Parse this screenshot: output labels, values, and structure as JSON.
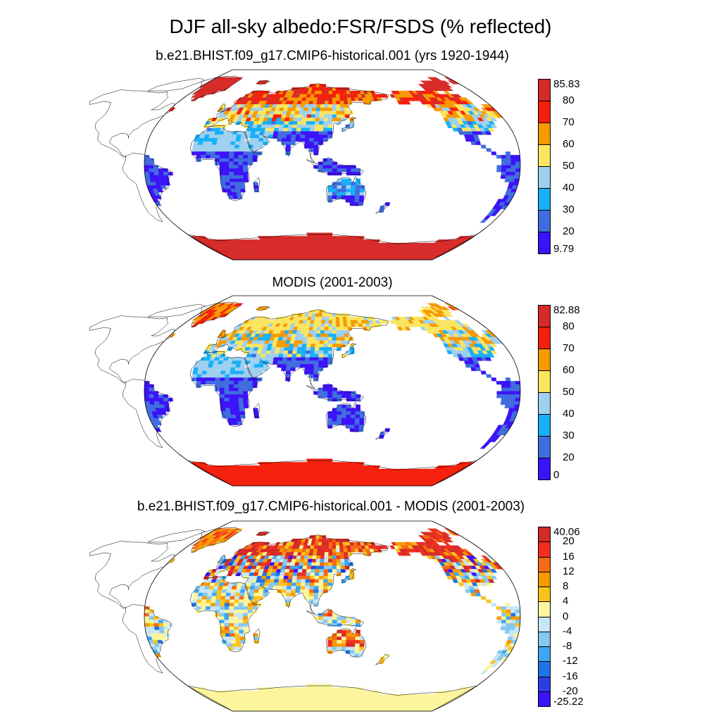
{
  "title": "DJF all-sky albedo:FSR/FSDS (% reflected)",
  "panels": [
    {
      "id": "model",
      "title": "b.e21.BHIST.f09_g17.CMIP6-historical.001 (yrs 1920-1944)",
      "colorbar": {
        "labels": [
          "85.83",
          "80",
          "70",
          "60",
          "50",
          "40",
          "30",
          "20",
          "9.79"
        ],
        "colors": [
          "#d62a28",
          "#f61f0c",
          "#f79a00",
          "#fbe55f",
          "#9ed0ef",
          "#18b0f8",
          "#3f6ce0",
          "#3c12f8"
        ]
      }
    },
    {
      "id": "obs",
      "title": "MODIS (2001-2003)",
      "colorbar": {
        "labels": [
          "82.88",
          "80",
          "70",
          "60",
          "50",
          "40",
          "30",
          "20",
          "0"
        ],
        "colors": [
          "#d62a28",
          "#f61f0c",
          "#f79a00",
          "#fbe55f",
          "#9ed0ef",
          "#18b0f8",
          "#3f6ce0",
          "#3c12f8"
        ]
      }
    },
    {
      "id": "diff",
      "title": "b.e21.BHIST.f09_g17.CMIP6-historical.001 - MODIS (2001-2003)",
      "colorbar": {
        "labels": [
          "40.06",
          "20",
          "16",
          "12",
          "8",
          "4",
          "0",
          "-4",
          "-8",
          "-12",
          "-16",
          "-20",
          "-25.22"
        ],
        "colors": [
          "#d62a28",
          "#f0301c",
          "#f56a14",
          "#f79a00",
          "#fbc21e",
          "#fcf59c",
          "#c8e6f6",
          "#84c8f0",
          "#3ea6f4",
          "#2074e4",
          "#2a3ee4",
          "#3c12f8"
        ]
      }
    }
  ],
  "chart_data": {
    "type": "map",
    "projection": "Robinson",
    "season": "DJF",
    "variable": "all-sky albedo (FSR/FSDS)",
    "units": "% reflected",
    "panels": [
      {
        "title": "b.e21.BHIST.f09_g17.CMIP6-historical.001 (yrs 1920-1944)",
        "min": 9.79,
        "max": 85.83,
        "levels": [
          20,
          30,
          40,
          50,
          60,
          70,
          80
        ]
      },
      {
        "title": "MODIS (2001-2003)",
        "min": 0,
        "max": 82.88,
        "levels": [
          20,
          30,
          40,
          50,
          60,
          70,
          80
        ]
      },
      {
        "title": "b.e21.BHIST.f09_g17.CMIP6-historical.001 - MODIS (2001-2003)",
        "min": -25.22,
        "max": 40.06,
        "levels": [
          -20,
          -16,
          -12,
          -8,
          -4,
          0,
          4,
          8,
          12,
          16,
          20
        ]
      }
    ]
  }
}
